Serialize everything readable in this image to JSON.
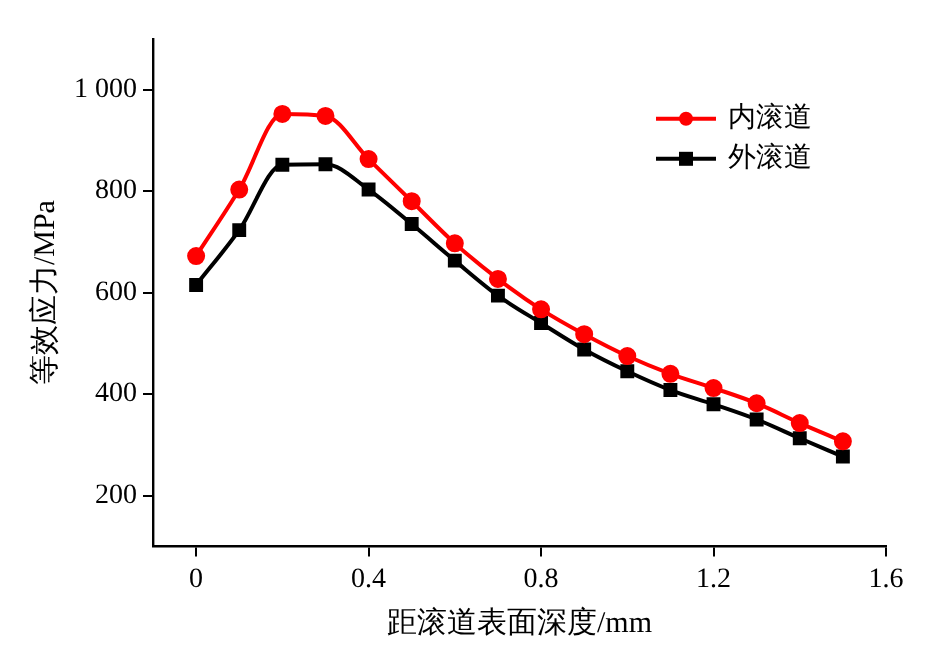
{
  "chart_data": {
    "type": "line",
    "xlabel": "距滚道表面深度/mm",
    "ylabel": "等效应力/MPa",
    "x": [
      0,
      0.1,
      0.2,
      0.3,
      0.4,
      0.5,
      0.6,
      0.7,
      0.8,
      0.9,
      1.0,
      1.1,
      1.2,
      1.3,
      1.4,
      1.5
    ],
    "series": [
      {
        "name": "内滚道",
        "color": "#ff0000",
        "marker": "circle",
        "values": [
          672,
          803,
          952,
          948,
          863,
          780,
          697,
          627,
          567,
          518,
          475,
          440,
          412,
          382,
          343,
          307
        ]
      },
      {
        "name": "外滚道",
        "color": "#000000",
        "marker": "square",
        "values": [
          615,
          723,
          852,
          853,
          803,
          735,
          663,
          594,
          540,
          488,
          445,
          408,
          380,
          350,
          313,
          277
        ]
      }
    ],
    "xlim": [
      -0.1,
      1.6
    ],
    "xticks": [
      0,
      0.4,
      0.8,
      1.2,
      1.6
    ],
    "ylim": [
      100,
      1100
    ],
    "yticks": [
      200,
      400,
      600,
      800,
      {
        "value": 1000,
        "label": "1 000"
      }
    ],
    "grid": false,
    "legend": "top right",
    "line_style": "solid"
  }
}
